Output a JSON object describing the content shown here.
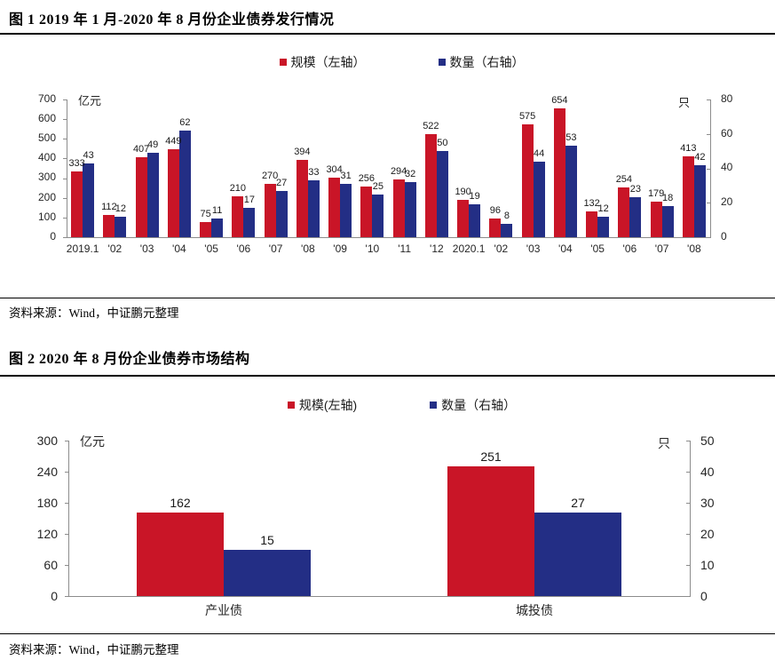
{
  "figures": [
    {
      "no": "图 1",
      "title": "图 1  2019 年 1 月-2020 年 8 月份企业债券发行情况",
      "source": "资料来源：Wind，中证鹏元整理"
    },
    {
      "no": "图 2",
      "title": "图 2  2020 年 8 月份企业债券市场结构",
      "source": "资料来源：Wind，中证鹏元整理"
    }
  ],
  "colors": {
    "scale_red": "#C91527",
    "count_blue": "#232E85",
    "axis_gray": "#8c8c8c",
    "text_black": "#1a1a1a"
  },
  "chart_data": [
    {
      "type": "bar",
      "title": "2019年1月-2020年8月份企业债券发行情况",
      "categories": [
        "2019.1",
        "'02",
        "'03",
        "'04",
        "'05",
        "'06",
        "'07",
        "'08",
        "'09",
        "'10",
        "'11",
        "'12",
        "2020.1",
        "'02",
        "'03",
        "'04",
        "'05",
        "'06",
        "'07",
        "'08"
      ],
      "series": [
        {
          "name": "规模（左轴）",
          "axis": "left",
          "color": "#C91527",
          "values": [
            333,
            112,
            407,
            449,
            75,
            210,
            270,
            394,
            304,
            256,
            294,
            522,
            190,
            96,
            575,
            654,
            132,
            254,
            179,
            413
          ]
        },
        {
          "name": "数量（右轴）",
          "axis": "right",
          "color": "#232E85",
          "values": [
            43,
            12,
            49,
            62,
            11,
            17,
            27,
            33,
            31,
            25,
            32,
            50,
            19,
            8,
            44,
            53,
            12,
            23,
            18,
            42
          ]
        }
      ],
      "left_axis": {
        "unit": "亿元",
        "max": 700,
        "ticks": [
          0,
          100,
          200,
          300,
          400,
          500,
          600,
          700
        ]
      },
      "right_axis": {
        "unit": "只",
        "max": 80,
        "ticks": [
          0,
          20,
          40,
          60,
          80
        ]
      },
      "legend_position": "top",
      "grid": false,
      "source": "资料来源：Wind，中证鹏元整理"
    },
    {
      "type": "bar",
      "title": "2020年8月份企业债券市场结构",
      "categories": [
        "产业债",
        "城投债"
      ],
      "series": [
        {
          "name": "规模(左轴)",
          "axis": "left",
          "color": "#C91527",
          "values": [
            162,
            251
          ]
        },
        {
          "name": "数量（右轴）",
          "axis": "right",
          "color": "#232E85",
          "values": [
            15,
            27
          ]
        }
      ],
      "left_axis": {
        "unit": "亿元",
        "max": 300,
        "ticks": [
          0,
          60,
          120,
          180,
          240,
          300
        ]
      },
      "right_axis": {
        "unit": "只",
        "max": 50,
        "ticks": [
          0,
          10,
          20,
          30,
          40,
          50
        ]
      },
      "legend_position": "top",
      "grid": false,
      "source": "资料来源：Wind，中证鹏元整理"
    }
  ]
}
